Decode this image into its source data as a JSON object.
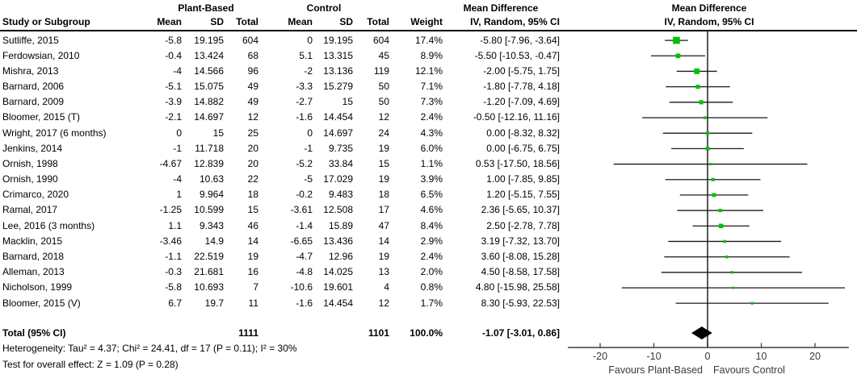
{
  "table": {
    "group_plant": "Plant-Based",
    "group_control": "Control",
    "group_md": "Mean Difference",
    "sub_md": "IV, Random, 95% CI",
    "study_header": "Study or Subgroup",
    "mean_header": "Mean",
    "sd_header": "SD",
    "total_header": "Total",
    "weight_header": "Weight",
    "total_row": {
      "label": "Total (95% CI)",
      "plant_total": "1111",
      "control_total": "1101",
      "weight": "100.0%",
      "ci_text": "-1.07 [-3.01, 0.86]"
    },
    "heterogeneity": "Heterogeneity: Tau² = 4.37; Chi² = 24.41, df = 17 (P = 0.11); I² = 30%",
    "overall_effect": "Test for overall effect: Z = 1.09 (P = 0.28)"
  },
  "chart_data": {
    "type": "forest",
    "title": "Mean Difference",
    "subtitle": "IV, Random, 95% CI",
    "x_ticks": [
      -20,
      -10,
      0,
      10,
      20
    ],
    "xlim": [
      -26,
      26.3
    ],
    "zero_line": 0,
    "favours_left": "Favours Plant-Based",
    "favours_right": "Favours Control",
    "marker_color": "#00c300",
    "ci_line_color": "#1a1a1a",
    "zero_line_color": "#595959",
    "axis_color": "#3f3f3f",
    "diamond_color": "#000000",
    "studies": [
      {
        "study": "Sutliffe, 2015",
        "mean1": "-5.8",
        "sd1": "19.195",
        "n1": "604",
        "mean2": "0",
        "sd2": "19.195",
        "n2": "604",
        "weight": "17.4%",
        "weight_pct": 17.4,
        "ci_text": "-5.80 [-7.96, -3.64]",
        "md": -5.8,
        "lo": -7.96,
        "hi": -3.64
      },
      {
        "study": "Ferdowsian, 2010",
        "mean1": "-0.4",
        "sd1": "13.424",
        "n1": "68",
        "mean2": "5.1",
        "sd2": "13.315",
        "n2": "45",
        "weight": "8.9%",
        "weight_pct": 8.9,
        "ci_text": "-5.50 [-10.53, -0.47]",
        "md": -5.5,
        "lo": -10.53,
        "hi": -0.47
      },
      {
        "study": "Mishra, 2013",
        "mean1": "-4",
        "sd1": "14.566",
        "n1": "96",
        "mean2": "-2",
        "sd2": "13.136",
        "n2": "119",
        "weight": "12.1%",
        "weight_pct": 12.1,
        "ci_text": "-2.00 [-5.75, 1.75]",
        "md": -2.0,
        "lo": -5.75,
        "hi": 1.75
      },
      {
        "study": "Barnard, 2006",
        "mean1": "-5.1",
        "sd1": "15.075",
        "n1": "49",
        "mean2": "-3.3",
        "sd2": "15.279",
        "n2": "50",
        "weight": "7.1%",
        "weight_pct": 7.1,
        "ci_text": "-1.80 [-7.78, 4.18]",
        "md": -1.8,
        "lo": -7.78,
        "hi": 4.18
      },
      {
        "study": "Barnard, 2009",
        "mean1": "-3.9",
        "sd1": "14.882",
        "n1": "49",
        "mean2": "-2.7",
        "sd2": "15",
        "n2": "50",
        "weight": "7.3%",
        "weight_pct": 7.3,
        "ci_text": "-1.20 [-7.09, 4.69]",
        "md": -1.2,
        "lo": -7.09,
        "hi": 4.69
      },
      {
        "study": "Bloomer, 2015 (T)",
        "mean1": "-2.1",
        "sd1": "14.697",
        "n1": "12",
        "mean2": "-1.6",
        "sd2": "14.454",
        "n2": "12",
        "weight": "2.4%",
        "weight_pct": 2.4,
        "ci_text": "-0.50 [-12.16, 11.16]",
        "md": -0.5,
        "lo": -12.16,
        "hi": 11.16
      },
      {
        "study": "Wright, 2017 (6 months)",
        "mean1": "0",
        "sd1": "15",
        "n1": "25",
        "mean2": "0",
        "sd2": "14.697",
        "n2": "24",
        "weight": "4.3%",
        "weight_pct": 4.3,
        "ci_text": "0.00 [-8.32, 8.32]",
        "md": 0.0,
        "lo": -8.32,
        "hi": 8.32
      },
      {
        "study": "Jenkins, 2014",
        "mean1": "-1",
        "sd1": "11.718",
        "n1": "20",
        "mean2": "-1",
        "sd2": "9.735",
        "n2": "19",
        "weight": "6.0%",
        "weight_pct": 6.0,
        "ci_text": "0.00 [-6.75, 6.75]",
        "md": 0.0,
        "lo": -6.75,
        "hi": 6.75
      },
      {
        "study": "Ornish, 1998",
        "mean1": "-4.67",
        "sd1": "12.839",
        "n1": "20",
        "mean2": "-5.2",
        "sd2": "33.84",
        "n2": "15",
        "weight": "1.1%",
        "weight_pct": 1.1,
        "ci_text": "0.53 [-17.50, 18.56]",
        "md": 0.53,
        "lo": -17.5,
        "hi": 18.56
      },
      {
        "study": "Ornish, 1990",
        "mean1": "-4",
        "sd1": "10.63",
        "n1": "22",
        "mean2": "-5",
        "sd2": "17.029",
        "n2": "19",
        "weight": "3.9%",
        "weight_pct": 3.9,
        "ci_text": "1.00 [-7.85, 9.85]",
        "md": 1.0,
        "lo": -7.85,
        "hi": 9.85
      },
      {
        "study": "Crimarco, 2020",
        "mean1": "1",
        "sd1": "9.964",
        "n1": "18",
        "mean2": "-0.2",
        "sd2": "9.483",
        "n2": "18",
        "weight": "6.5%",
        "weight_pct": 6.5,
        "ci_text": "1.20 [-5.15, 7.55]",
        "md": 1.2,
        "lo": -5.15,
        "hi": 7.55
      },
      {
        "study": "Ramal, 2017",
        "mean1": "-1.25",
        "sd1": "10.599",
        "n1": "15",
        "mean2": "-3.61",
        "sd2": "12.508",
        "n2": "17",
        "weight": "4.6%",
        "weight_pct": 4.6,
        "ci_text": "2.36 [-5.65, 10.37]",
        "md": 2.36,
        "lo": -5.65,
        "hi": 10.37
      },
      {
        "study": "Lee, 2016 (3 months)",
        "mean1": "1.1",
        "sd1": "9.343",
        "n1": "46",
        "mean2": "-1.4",
        "sd2": "15.89",
        "n2": "47",
        "weight": "8.4%",
        "weight_pct": 8.4,
        "ci_text": "2.50 [-2.78, 7.78]",
        "md": 2.5,
        "lo": -2.78,
        "hi": 7.78
      },
      {
        "study": "Macklin, 2015",
        "mean1": "-3.46",
        "sd1": "14.9",
        "n1": "14",
        "mean2": "-6.65",
        "sd2": "13.436",
        "n2": "14",
        "weight": "2.9%",
        "weight_pct": 2.9,
        "ci_text": "3.19 [-7.32, 13.70]",
        "md": 3.19,
        "lo": -7.32,
        "hi": 13.7
      },
      {
        "study": "Barnard, 2018",
        "mean1": "-1.1",
        "sd1": "22.519",
        "n1": "19",
        "mean2": "-4.7",
        "sd2": "12.96",
        "n2": "19",
        "weight": "2.4%",
        "weight_pct": 2.4,
        "ci_text": "3.60 [-8.08, 15.28]",
        "md": 3.6,
        "lo": -8.08,
        "hi": 15.28
      },
      {
        "study": "Alleman, 2013",
        "mean1": "-0.3",
        "sd1": "21.681",
        "n1": "16",
        "mean2": "-4.8",
        "sd2": "14.025",
        "n2": "13",
        "weight": "2.0%",
        "weight_pct": 2.0,
        "ci_text": "4.50 [-8.58, 17.58]",
        "md": 4.5,
        "lo": -8.58,
        "hi": 17.58
      },
      {
        "study": "Nicholson, 1999",
        "mean1": "-5.8",
        "sd1": "10.693",
        "n1": "7",
        "mean2": "-10.6",
        "sd2": "19.601",
        "n2": "4",
        "weight": "0.8%",
        "weight_pct": 0.8,
        "ci_text": "4.80 [-15.98, 25.58]",
        "md": 4.8,
        "lo": -15.98,
        "hi": 25.58
      },
      {
        "study": "Bloomer, 2015 (V)",
        "mean1": "6.7",
        "sd1": "19.7",
        "n1": "11",
        "mean2": "-1.6",
        "sd2": "14.454",
        "n2": "12",
        "weight": "1.7%",
        "weight_pct": 1.7,
        "ci_text": "8.30 [-5.93, 22.53]",
        "md": 8.3,
        "lo": -5.93,
        "hi": 22.53
      }
    ],
    "total": {
      "md": -1.07,
      "lo": -3.01,
      "hi": 0.86
    }
  }
}
